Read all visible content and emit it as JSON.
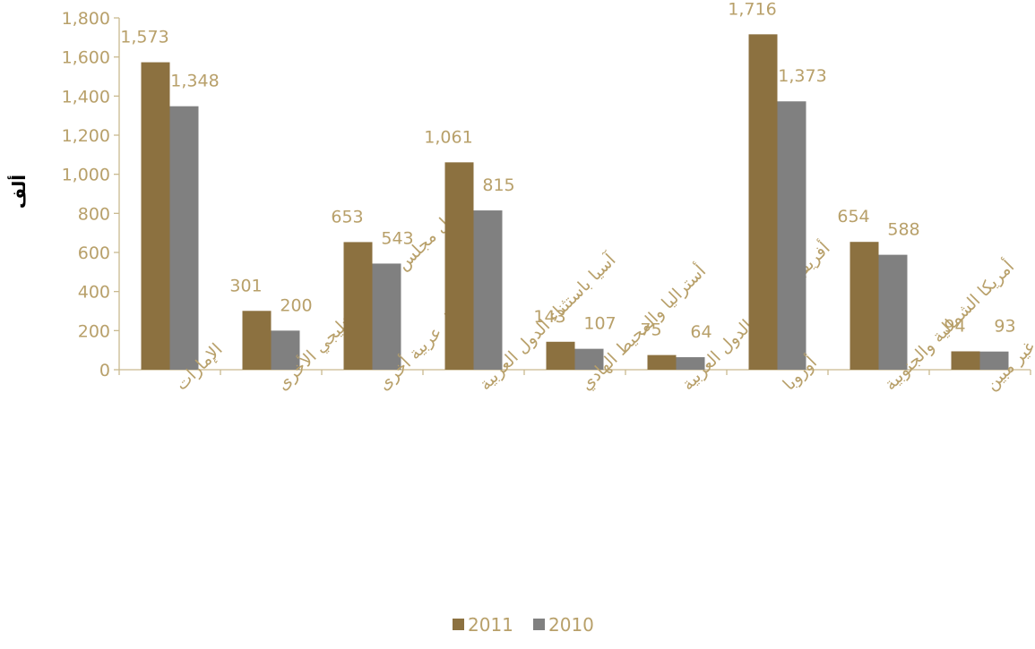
{
  "chart_data": {
    "type": "bar",
    "title": "",
    "xlabel": "",
    "ylabel": "ألف",
    "ylim": [
      0,
      1800
    ],
    "yticks": [
      0,
      200,
      400,
      600,
      800,
      1000,
      1200,
      1400,
      1600,
      1800
    ],
    "ytick_labels": [
      "0",
      "200",
      "400",
      "600",
      "800",
      "1,000",
      "1,200",
      "1,400",
      "1,600",
      "1,800"
    ],
    "grid": false,
    "legend_position": "bottom",
    "categories": [
      "الإمارات",
      "دول مجلس التعاون الخليجي  الأخرى",
      "دول عربية أخرى",
      "آسيا باستثناء الدول العربية",
      "أستراليا والمحيط الهادي",
      "أفريقيا باستثناء الدول العربية",
      "أوروبا",
      "أمريكا الشمالية والجنوبية",
      "غير مبين"
    ],
    "series": [
      {
        "name": "2011",
        "color": "#8c7140",
        "values": [
          1573,
          301,
          653,
          1061,
          143,
          75,
          1716,
          654,
          94
        ],
        "labels": [
          "1,573",
          "301",
          "653",
          "1,061",
          "143",
          "75",
          "1,716",
          "654",
          "94"
        ]
      },
      {
        "name": "2010",
        "color": "#808080",
        "values": [
          1348,
          200,
          543,
          815,
          107,
          64,
          1373,
          588,
          93
        ],
        "labels": [
          "1,348",
          "200",
          "543",
          "815",
          "107",
          "64",
          "1,373",
          "588",
          "93"
        ]
      }
    ],
    "colors": {
      "axis": "#c9b98f",
      "text": "#b8a06a",
      "ylabel": "#000000"
    }
  }
}
